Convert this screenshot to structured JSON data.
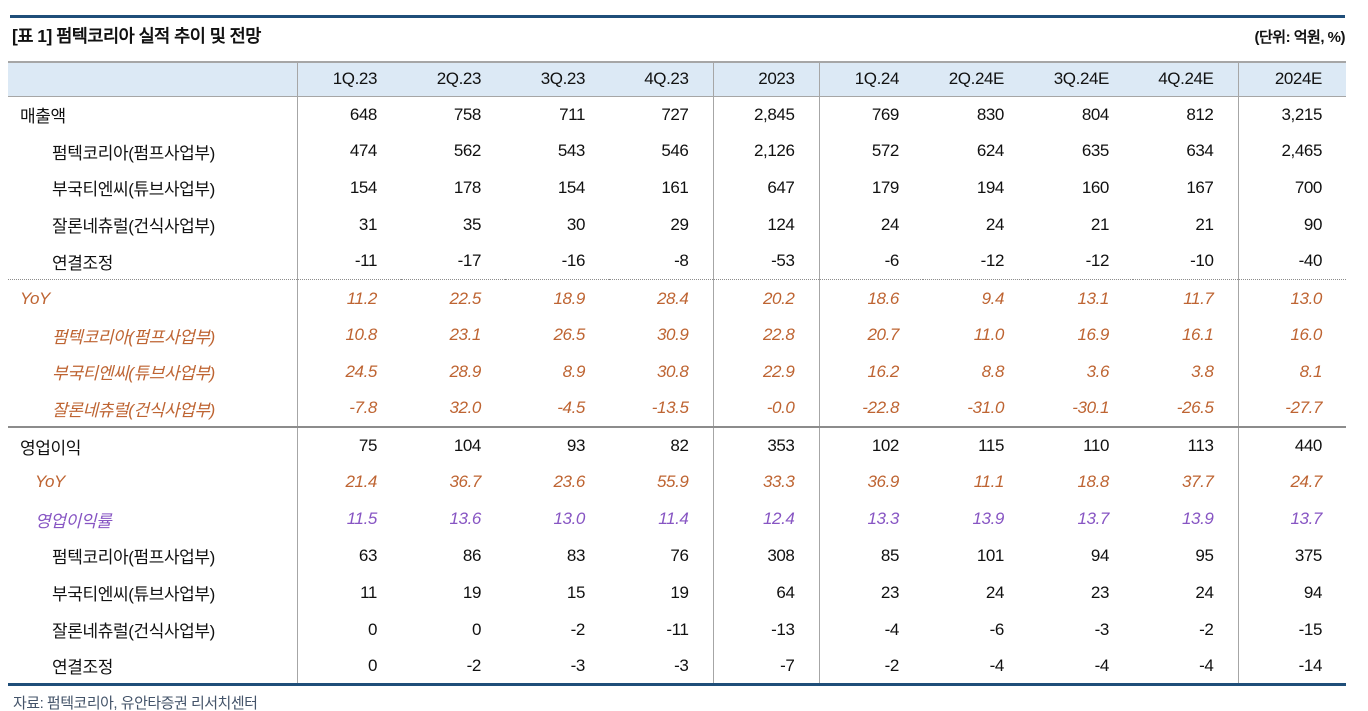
{
  "title": "[표 1] 펌텍코리아 실적 추이 및 전망",
  "unit_label": "(단위: 억원, %)",
  "source": "자료: 펌텍코리아, 유안타증권 리서치센터",
  "colors": {
    "navy_rule": "#1F4E79",
    "header_bg": "#DCE9F5",
    "yoy_text": "#BE6432",
    "margin_text": "#8755C3",
    "grid_gray": "#A6A6A6"
  },
  "table": {
    "columns": [
      "",
      "1Q.23",
      "2Q.23",
      "3Q.23",
      "4Q.23",
      "2023",
      "1Q.24",
      "2Q.24E",
      "3Q.24E",
      "4Q.24E",
      "2024E"
    ],
    "rows": [
      {
        "label": "매출액",
        "indent": 0,
        "style": "normal",
        "sep_before": "none",
        "values": [
          "648",
          "758",
          "711",
          "727",
          "2,845",
          "769",
          "830",
          "804",
          "812",
          "3,215"
        ]
      },
      {
        "label": "펌텍코리아(펌프사업부)",
        "indent": 2,
        "style": "normal",
        "sep_before": "none",
        "values": [
          "474",
          "562",
          "543",
          "546",
          "2,126",
          "572",
          "624",
          "635",
          "634",
          "2,465"
        ]
      },
      {
        "label": "부국티엔씨(튜브사업부)",
        "indent": 2,
        "style": "normal",
        "sep_before": "none",
        "values": [
          "154",
          "178",
          "154",
          "161",
          "647",
          "179",
          "194",
          "160",
          "167",
          "700"
        ]
      },
      {
        "label": "잘론네츄럴(건식사업부)",
        "indent": 2,
        "style": "normal",
        "sep_before": "none",
        "values": [
          "31",
          "35",
          "30",
          "29",
          "124",
          "24",
          "24",
          "21",
          "21",
          "90"
        ]
      },
      {
        "label": "연결조정",
        "indent": 2,
        "style": "normal",
        "sep_before": "none",
        "values": [
          "-11",
          "-17",
          "-16",
          "-8",
          "-53",
          "-6",
          "-12",
          "-12",
          "-10",
          "-40"
        ]
      },
      {
        "label": "YoY",
        "indent": 0,
        "style": "yoy",
        "sep_before": "dotted",
        "values": [
          "11.2",
          "22.5",
          "18.9",
          "28.4",
          "20.2",
          "18.6",
          "9.4",
          "13.1",
          "11.7",
          "13.0"
        ]
      },
      {
        "label": "펌텍코리아(펌프사업부)",
        "indent": 2,
        "style": "yoy",
        "sep_before": "none",
        "values": [
          "10.8",
          "23.1",
          "26.5",
          "30.9",
          "22.8",
          "20.7",
          "11.0",
          "16.9",
          "16.1",
          "16.0"
        ]
      },
      {
        "label": "부국티엔씨(튜브사업부)",
        "indent": 2,
        "style": "yoy",
        "sep_before": "none",
        "values": [
          "24.5",
          "28.9",
          "8.9",
          "30.8",
          "22.9",
          "16.2",
          "8.8",
          "3.6",
          "3.8",
          "8.1"
        ]
      },
      {
        "label": "잘론네츄럴(건식사업부)",
        "indent": 2,
        "style": "yoy",
        "sep_before": "none",
        "values": [
          "-7.8",
          "32.0",
          "-4.5",
          "-13.5",
          "-0.0",
          "-22.8",
          "-31.0",
          "-30.1",
          "-26.5",
          "-27.7"
        ]
      },
      {
        "label": "영업이익",
        "indent": 0,
        "style": "normal",
        "sep_before": "solid",
        "values": [
          "75",
          "104",
          "93",
          "82",
          "353",
          "102",
          "115",
          "110",
          "113",
          "440"
        ]
      },
      {
        "label": "YoY",
        "indent": 1,
        "style": "yoy",
        "sep_before": "none",
        "values": [
          "21.4",
          "36.7",
          "23.6",
          "55.9",
          "33.3",
          "36.9",
          "11.1",
          "18.8",
          "37.7",
          "24.7"
        ]
      },
      {
        "label": "영업이익률",
        "indent": 1,
        "style": "margin",
        "sep_before": "none",
        "values": [
          "11.5",
          "13.6",
          "13.0",
          "11.4",
          "12.4",
          "13.3",
          "13.9",
          "13.7",
          "13.9",
          "13.7"
        ]
      },
      {
        "label": "펌텍코리아(펌프사업부)",
        "indent": 2,
        "style": "normal",
        "sep_before": "none",
        "values": [
          "63",
          "86",
          "83",
          "76",
          "308",
          "85",
          "101",
          "94",
          "95",
          "375"
        ]
      },
      {
        "label": "부국티엔씨(튜브사업부)",
        "indent": 2,
        "style": "normal",
        "sep_before": "none",
        "values": [
          "11",
          "19",
          "15",
          "19",
          "64",
          "23",
          "24",
          "23",
          "24",
          "94"
        ]
      },
      {
        "label": "잘론네츄럴(건식사업부)",
        "indent": 2,
        "style": "normal",
        "sep_before": "none",
        "values": [
          "0",
          "0",
          "-2",
          "-11",
          "-13",
          "-4",
          "-6",
          "-3",
          "-2",
          "-15"
        ]
      },
      {
        "label": "연결조정",
        "indent": 2,
        "style": "normal",
        "sep_before": "none",
        "values": [
          "0",
          "-2",
          "-3",
          "-3",
          "-7",
          "-2",
          "-4",
          "-4",
          "-4",
          "-14"
        ]
      }
    ]
  }
}
